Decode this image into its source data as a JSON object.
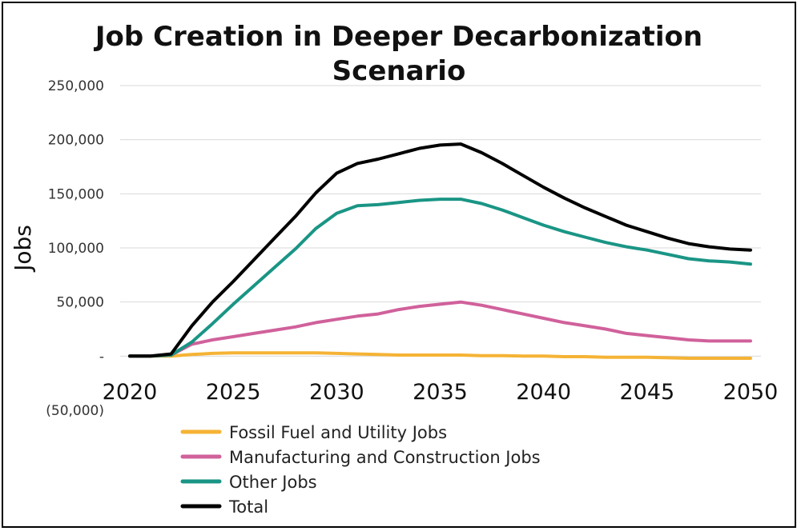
{
  "chart_data": {
    "type": "line",
    "title_lines": [
      "Job Creation in Deeper Decarbonization",
      "Scenario"
    ],
    "xlabel": "",
    "ylabel": "Jobs",
    "xlim": [
      2020,
      2050
    ],
    "ylim": [
      -50000,
      250000
    ],
    "x_ticks": [
      "2020",
      "2025",
      "2030",
      "2035",
      "2040",
      "2045",
      "2050"
    ],
    "x_tick_values": [
      2020,
      2025,
      2030,
      2035,
      2040,
      2045,
      2050
    ],
    "y_ticks": [
      "250,000",
      "200,000",
      "150,000",
      "100,000",
      "50,000",
      "-",
      "(50,000)"
    ],
    "y_tick_values": [
      250000,
      200000,
      150000,
      100000,
      50000,
      0,
      -50000
    ],
    "grid": true,
    "legend_position": "bottom",
    "x": [
      2020,
      2021,
      2022,
      2023,
      2024,
      2025,
      2026,
      2027,
      2028,
      2029,
      2030,
      2031,
      2032,
      2033,
      2034,
      2035,
      2036,
      2037,
      2038,
      2039,
      2040,
      2041,
      2042,
      2043,
      2044,
      2045,
      2046,
      2047,
      2048,
      2049,
      2050
    ],
    "series": [
      {
        "name": "Fossil Fuel and Utility Jobs",
        "color": "#f5b335",
        "values": [
          0,
          0,
          0,
          1500,
          2500,
          3000,
          3000,
          3000,
          3000,
          3000,
          2500,
          2000,
          1500,
          1000,
          1000,
          1000,
          1000,
          500,
          500,
          0,
          0,
          -500,
          -500,
          -1000,
          -1000,
          -1000,
          -1500,
          -2000,
          -2000,
          -2000,
          -2000
        ]
      },
      {
        "name": "Manufacturing and Construction Jobs",
        "color": "#d0619b",
        "values": [
          0,
          0,
          1000,
          11000,
          15000,
          18000,
          21000,
          24000,
          27000,
          31000,
          34000,
          37000,
          39000,
          43000,
          46000,
          48000,
          50000,
          47000,
          43000,
          39000,
          35000,
          31000,
          28000,
          25000,
          21000,
          19000,
          17000,
          15000,
          14000,
          14000,
          14000
        ]
      },
      {
        "name": "Other Jobs",
        "color": "#1a9585",
        "values": [
          0,
          0,
          1000,
          13000,
          30000,
          48000,
          65000,
          82000,
          99000,
          118000,
          132000,
          139000,
          140000,
          142000,
          144000,
          145000,
          145000,
          141000,
          135000,
          128000,
          121000,
          115000,
          110000,
          105000,
          101000,
          98000,
          94000,
          90000,
          88000,
          87000,
          85000
        ]
      },
      {
        "name": "Total",
        "color": "#000000",
        "values": [
          0,
          0,
          2000,
          28000,
          50000,
          69000,
          89000,
          109000,
          129000,
          151000,
          169000,
          178000,
          182000,
          187000,
          192000,
          195000,
          196000,
          188000,
          178000,
          167000,
          156000,
          146000,
          137000,
          129000,
          121000,
          115000,
          109000,
          104000,
          101000,
          99000,
          98000
        ]
      }
    ]
  }
}
